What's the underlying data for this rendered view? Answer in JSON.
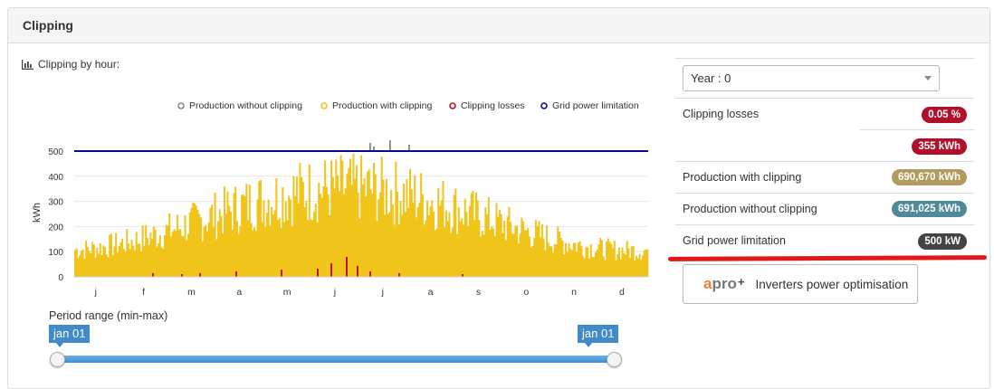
{
  "panel": {
    "title": "Clipping"
  },
  "chart_section": {
    "title": "Clipping by hour:",
    "icon": "bar-chart-icon"
  },
  "legend": [
    {
      "label": "Production without clipping",
      "color": "#7a8a8a"
    },
    {
      "label": "Production with clipping",
      "color": "#f0c419"
    },
    {
      "label": "Clipping losses",
      "color": "#c0141e"
    },
    {
      "label": "Grid power limitation",
      "color": "#0a0a8c"
    }
  ],
  "chart_data": {
    "type": "bar",
    "ylabel": "kWh",
    "xlabel": "",
    "ylim": [
      0,
      550
    ],
    "yticks": [
      0,
      100,
      200,
      300,
      400,
      500
    ],
    "month_labels": [
      "j",
      "f",
      "m",
      "a",
      "m",
      "j",
      "j",
      "a",
      "s",
      "o",
      "n",
      "d"
    ],
    "grid": true,
    "grid_limit": 500,
    "series": [
      {
        "name": "Production with clipping",
        "color": "#f0c419",
        "description": "daily peak hourly production, rising from ~150-250 kWh in winter to ~450-500 kWh in summer"
      },
      {
        "name": "Production without clipping",
        "color": "#7a8a8a",
        "peak_values_above_limit": [
          520,
          530,
          550,
          540,
          525
        ]
      },
      {
        "name": "Clipping losses",
        "color": "#c0141e",
        "peak_values": [
          5,
          8,
          15,
          30,
          25,
          12,
          6
        ]
      },
      {
        "name": "Grid power limitation",
        "color": "#0a0a8c",
        "value": 500
      }
    ]
  },
  "range": {
    "label": "Period range (min-max)",
    "min_value": "jan 01",
    "max_value": "jan 01"
  },
  "side": {
    "select_value": "Year : 0",
    "stats": [
      {
        "label": "Clipping losses",
        "value": "0.05 %",
        "color": "#b0102a"
      },
      {
        "label": "",
        "value": "355 kWh",
        "color": "#b0102a"
      },
      {
        "label": "Production with clipping",
        "value": "690,670 kWh",
        "color": "#b39a5e"
      },
      {
        "label": "Production without clipping",
        "value": "691,025 kWh",
        "color": "#4f8a9a"
      },
      {
        "label": "Grid power limitation",
        "value": "500 kW",
        "color": "#444444"
      }
    ],
    "apro": {
      "logo_a": "a",
      "logo_pro": "pro",
      "logo_plus": "+",
      "text": "Inverters power optimisation"
    }
  }
}
